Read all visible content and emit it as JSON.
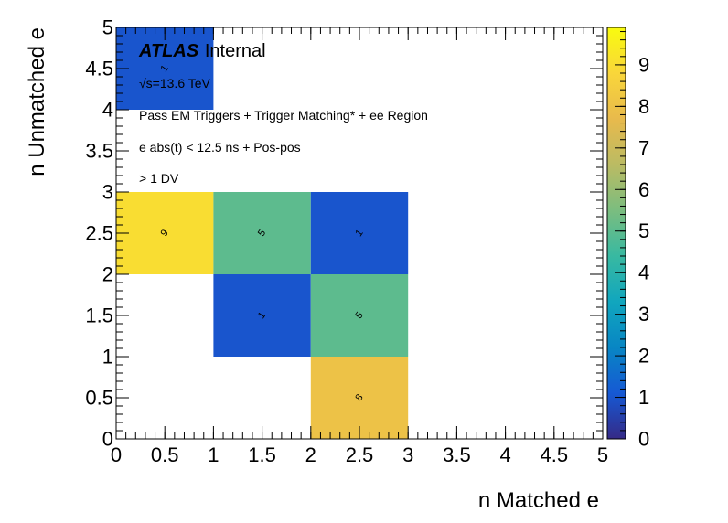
{
  "chart_data": {
    "type": "heatmap",
    "xlabel": "n Matched e",
    "ylabel": "n Unmatched e",
    "xlim": [
      0,
      5
    ],
    "ylim": [
      0,
      5
    ],
    "x_bin_edges": [
      0,
      1,
      2,
      3,
      4,
      5
    ],
    "y_bin_edges": [
      0,
      1,
      2,
      3,
      4,
      5
    ],
    "x_tick_labels": [
      "0",
      "0.5",
      "1",
      "1.5",
      "2",
      "2.5",
      "3",
      "3.5",
      "4",
      "4.5",
      "5"
    ],
    "y_tick_labels": [
      "0",
      "0.5",
      "1",
      "1.5",
      "2",
      "2.5",
      "3",
      "3.5",
      "4",
      "4.5",
      "5"
    ],
    "z_range": [
      0,
      9.9
    ],
    "z_tick_labels": [
      "0",
      "1",
      "2",
      "3",
      "4",
      "5",
      "6",
      "7",
      "8",
      "9"
    ],
    "cells": [
      {
        "x_bin": 0,
        "y_bin": 4,
        "value": 1,
        "label": "1"
      },
      {
        "x_bin": 0,
        "y_bin": 2,
        "value": 9,
        "label": "9"
      },
      {
        "x_bin": 1,
        "y_bin": 2,
        "value": 5,
        "label": "5"
      },
      {
        "x_bin": 2,
        "y_bin": 2,
        "value": 1,
        "label": "1"
      },
      {
        "x_bin": 1,
        "y_bin": 1,
        "value": 1,
        "label": "1"
      },
      {
        "x_bin": 2,
        "y_bin": 1,
        "value": 5,
        "label": "5"
      },
      {
        "x_bin": 2,
        "y_bin": 0,
        "value": 8,
        "label": "8"
      }
    ],
    "annotations": {
      "atlas": "ATLAS",
      "internal": "Internal",
      "energy": "√s=13.6 TeV",
      "selection_1": "Pass EM Triggers + Trigger Matching* + ee Region",
      "selection_2": "e abs(t) < 12.5 ns + Pos-pos",
      "selection_3": "> 1 DV"
    },
    "colormap": [
      "#352a87",
      "#1659d4",
      "#0886c4",
      "#11a6be",
      "#38b9a1",
      "#7bbd7f",
      "#bbbb63",
      "#e8ba4c",
      "#f9d63a",
      "#f9fb0e"
    ]
  }
}
